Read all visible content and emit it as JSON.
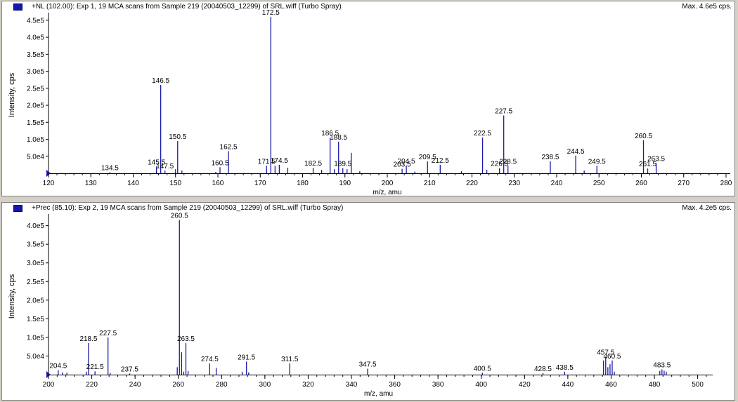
{
  "panels": [
    {
      "id": "top",
      "legend_color": "#1515b0",
      "title": "+NL (102.00): Exp 1, 19 MCA scans from Sample 219 (20040503_12299) of SRL.wiff (Turbo Spray)",
      "max_label": "Max. 4.6e5 cps."
    },
    {
      "id": "bottom",
      "legend_color": "#1515b0",
      "title": "+Prec (85.10): Exp 2, 19 MCA scans from Sample 219 (20040503_12299) of SRL.wiff (Turbo Spray)",
      "max_label": "Max. 4.2e5 cps."
    }
  ],
  "chart_data": [
    {
      "type": "bar",
      "title": "+NL (102.00): Exp 1, 19 MCA scans from Sample 219 (20040503_12299) of SRL.wiff (Turbo Spray)",
      "xlabel": "m/z, amu",
      "ylabel": "Intensity, cps",
      "xlim": [
        120,
        280
      ],
      "ylim": [
        0,
        460000
      ],
      "x_ticks": [
        120,
        130,
        140,
        150,
        160,
        170,
        180,
        190,
        200,
        210,
        220,
        230,
        240,
        250,
        260,
        270,
        280
      ],
      "y_ticks": [
        {
          "value": 50000,
          "label": "5.0e4"
        },
        {
          "value": 100000,
          "label": "1.0e5"
        },
        {
          "value": 150000,
          "label": "1.5e5"
        },
        {
          "value": 200000,
          "label": "2.0e5"
        },
        {
          "value": 250000,
          "label": "2.5e5"
        },
        {
          "value": 300000,
          "label": "3.0e5"
        },
        {
          "value": 350000,
          "label": "3.5e5"
        },
        {
          "value": 400000,
          "label": "4.0e5"
        },
        {
          "value": 450000,
          "label": "4.5e5"
        }
      ],
      "color": "#1a1aa6",
      "peaks": [
        {
          "x": 134.5,
          "y": 3000,
          "label": "134.5"
        },
        {
          "x": 145.5,
          "y": 20000,
          "label": "145.5"
        },
        {
          "x": 146.5,
          "y": 260000,
          "label": "146.5"
        },
        {
          "x": 147.5,
          "y": 8000,
          "label": "147.5"
        },
        {
          "x": 150.0,
          "y": 12000
        },
        {
          "x": 150.5,
          "y": 95000,
          "label": "150.5"
        },
        {
          "x": 151.5,
          "y": 8000
        },
        {
          "x": 159.5,
          "y": 4000
        },
        {
          "x": 160.5,
          "y": 18000,
          "label": "160.5"
        },
        {
          "x": 162.5,
          "y": 65000,
          "label": "162.5"
        },
        {
          "x": 171.5,
          "y": 22000,
          "label": "171.5"
        },
        {
          "x": 172.5,
          "y": 460000,
          "label": "172.5"
        },
        {
          "x": 173.5,
          "y": 22000
        },
        {
          "x": 174.5,
          "y": 25000,
          "label": "174.5"
        },
        {
          "x": 176.5,
          "y": 16000
        },
        {
          "x": 182.5,
          "y": 16000,
          "label": "182.5"
        },
        {
          "x": 184.5,
          "y": 10000
        },
        {
          "x": 186.5,
          "y": 105000,
          "label": "186.5"
        },
        {
          "x": 187.5,
          "y": 12000
        },
        {
          "x": 188.5,
          "y": 93000,
          "label": "188.5"
        },
        {
          "x": 189.5,
          "y": 15000,
          "label": "189.5"
        },
        {
          "x": 190.5,
          "y": 12000
        },
        {
          "x": 191.5,
          "y": 60000
        },
        {
          "x": 193.5,
          "y": 6000
        },
        {
          "x": 203.5,
          "y": 13000,
          "label": "203.5"
        },
        {
          "x": 204.5,
          "y": 23000,
          "label": "204.5"
        },
        {
          "x": 206.5,
          "y": 5000
        },
        {
          "x": 209.5,
          "y": 35000,
          "label": "209.5"
        },
        {
          "x": 212.5,
          "y": 25000,
          "label": "212.5"
        },
        {
          "x": 217.5,
          "y": 6000
        },
        {
          "x": 222.5,
          "y": 105000,
          "label": "222.5"
        },
        {
          "x": 223.5,
          "y": 10000
        },
        {
          "x": 226.5,
          "y": 15000,
          "label": "226.5"
        },
        {
          "x": 227.5,
          "y": 170000,
          "label": "227.5"
        },
        {
          "x": 228.5,
          "y": 22000,
          "label": "228.5"
        },
        {
          "x": 238.5,
          "y": 35000,
          "label": "238.5"
        },
        {
          "x": 244.5,
          "y": 52000,
          "label": "244.5"
        },
        {
          "x": 246.5,
          "y": 8000
        },
        {
          "x": 249.5,
          "y": 22000,
          "label": "249.5"
        },
        {
          "x": 260.5,
          "y": 97000,
          "label": "260.5"
        },
        {
          "x": 261.5,
          "y": 14000,
          "label": "261.5"
        },
        {
          "x": 263.5,
          "y": 30000,
          "label": "263.5"
        }
      ]
    },
    {
      "type": "bar",
      "title": "+Prec (85.10): Exp 2, 19 MCA scans from Sample 219 (20040503_12299) of SRL.wiff (Turbo Spray)",
      "xlabel": "m/z, amu",
      "ylabel": "Intensity, cps",
      "xlim": [
        200,
        505
      ],
      "ylim": [
        0,
        420000
      ],
      "x_ticks": [
        200,
        220,
        240,
        260,
        280,
        300,
        320,
        340,
        360,
        380,
        400,
        420,
        440,
        460,
        480,
        500
      ],
      "y_ticks": [
        {
          "value": 50000,
          "label": "5.0e4"
        },
        {
          "value": 100000,
          "label": "1.0e5"
        },
        {
          "value": 150000,
          "label": "1.5e5"
        },
        {
          "value": 200000,
          "label": "2.0e5"
        },
        {
          "value": 250000,
          "label": "2.5e5"
        },
        {
          "value": 300000,
          "label": "3.0e5"
        },
        {
          "value": 350000,
          "label": "3.5e5"
        },
        {
          "value": 400000,
          "label": "4.0e5"
        }
      ],
      "color": "#1a1aa6",
      "peaks": [
        {
          "x": 204.5,
          "y": 12000,
          "label": "204.5"
        },
        {
          "x": 206.5,
          "y": 6000
        },
        {
          "x": 208.5,
          "y": 5000
        },
        {
          "x": 217.5,
          "y": 8000
        },
        {
          "x": 218.5,
          "y": 85000,
          "label": "218.5"
        },
        {
          "x": 221.5,
          "y": 9000,
          "label": "221.5"
        },
        {
          "x": 227.5,
          "y": 100000,
          "label": "227.5"
        },
        {
          "x": 228.5,
          "y": 5000
        },
        {
          "x": 237.5,
          "y": 3000,
          "label": "237.5"
        },
        {
          "x": 259.5,
          "y": 20000
        },
        {
          "x": 260.5,
          "y": 415000,
          "label": "260.5"
        },
        {
          "x": 261.5,
          "y": 60000
        },
        {
          "x": 262.5,
          "y": 8000
        },
        {
          "x": 263.5,
          "y": 85000,
          "label": "263.5"
        },
        {
          "x": 264.5,
          "y": 10000
        },
        {
          "x": 274.5,
          "y": 30000,
          "label": "274.5"
        },
        {
          "x": 277.5,
          "y": 18000
        },
        {
          "x": 289.5,
          "y": 8000
        },
        {
          "x": 291.5,
          "y": 35000,
          "label": "291.5"
        },
        {
          "x": 292.5,
          "y": 6000
        },
        {
          "x": 311.5,
          "y": 30000,
          "label": "311.5"
        },
        {
          "x": 347.5,
          "y": 16000,
          "label": "347.5"
        },
        {
          "x": 400.5,
          "y": 5000,
          "label": "400.5"
        },
        {
          "x": 428.5,
          "y": 4000,
          "label": "428.5"
        },
        {
          "x": 438.5,
          "y": 8000,
          "label": "438.5"
        },
        {
          "x": 456.5,
          "y": 38000
        },
        {
          "x": 457.5,
          "y": 48000,
          "label": "457.5"
        },
        {
          "x": 458.5,
          "y": 20000
        },
        {
          "x": 459.5,
          "y": 28000
        },
        {
          "x": 460.5,
          "y": 38000,
          "label": "460.5"
        },
        {
          "x": 461.5,
          "y": 8000
        },
        {
          "x": 482.5,
          "y": 10000
        },
        {
          "x": 483.5,
          "y": 14000,
          "label": "483.5"
        },
        {
          "x": 484.5,
          "y": 11000
        },
        {
          "x": 485.5,
          "y": 8000
        }
      ]
    }
  ]
}
